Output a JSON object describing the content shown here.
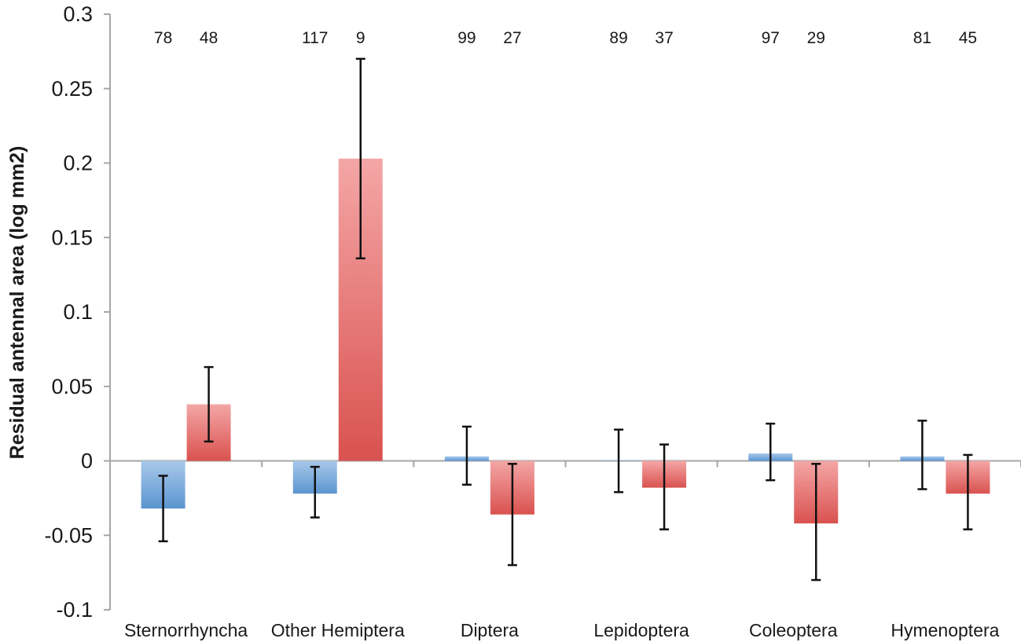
{
  "chart_data": {
    "type": "bar",
    "ylabel": "Residual antennal area (log mm2)",
    "xlabel": "",
    "ylim": [
      -0.1,
      0.3
    ],
    "yticks": [
      "-0.1",
      "-0.05",
      "0",
      "0.05",
      "0.1",
      "0.15",
      "0.2",
      "0.25",
      "0.3"
    ],
    "ytick_values": [
      -0.1,
      -0.05,
      0,
      0.05,
      0.1,
      0.15,
      0.2,
      0.25,
      0.3
    ],
    "grid": false,
    "legend": "none",
    "categories": [
      "Sternorrhyncha",
      "Other Hemiptera",
      "Diptera",
      "Lepidoptera",
      "Coleoptera",
      "Hymenoptera"
    ],
    "series": [
      {
        "color": "#5b9bd5",
        "values": [
          -0.032,
          -0.022,
          0.003,
          0.0,
          0.005,
          0.003
        ],
        "error_low": [
          -0.054,
          -0.038,
          -0.016,
          -0.021,
          -0.013,
          -0.019
        ],
        "error_high": [
          -0.01,
          -0.004,
          0.023,
          0.021,
          0.025,
          0.027
        ],
        "n": [
          "78",
          "117",
          "99",
          "89",
          "97",
          "81"
        ]
      },
      {
        "color": "#e06666",
        "values": [
          0.038,
          0.203,
          -0.036,
          -0.018,
          -0.042,
          -0.022
        ],
        "error_low": [
          0.013,
          0.136,
          -0.07,
          -0.046,
          -0.08,
          -0.046
        ],
        "error_high": [
          0.063,
          0.27,
          -0.002,
          0.011,
          -0.002,
          0.004
        ],
        "n": [
          "48",
          "9",
          "27",
          "37",
          "29",
          "45"
        ]
      }
    ]
  }
}
